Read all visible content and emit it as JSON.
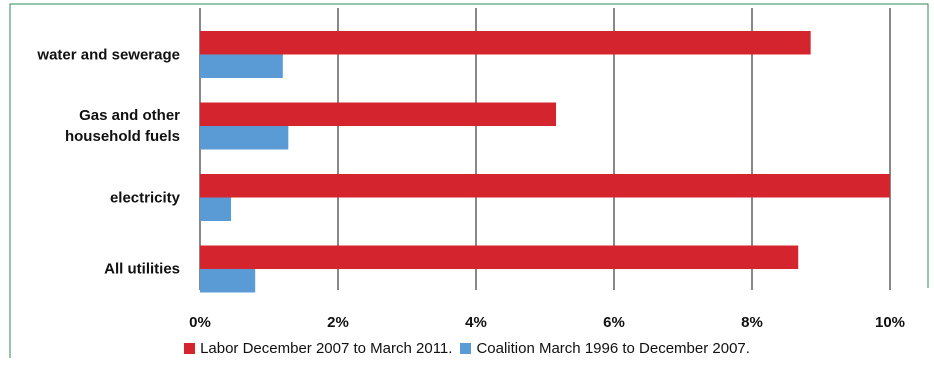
{
  "chart_data": {
    "type": "hbar",
    "categories": [
      "water and sewerage",
      "Gas and other household fuels",
      "electricity",
      "All utilities"
    ],
    "series": [
      {
        "name": "Labor December 2007 to March 2011.",
        "color": "#d4242e",
        "values": [
          8.85,
          5.16,
          10,
          8.67
        ]
      },
      {
        "name": "Coalition March 1996 to December 2007.",
        "color": "#5b9bd5",
        "values": [
          1.2,
          1.28,
          0.45,
          0.8
        ]
      }
    ],
    "xlim": [
      0,
      10
    ],
    "xticks": [
      {
        "value": 0,
        "label": "0%"
      },
      {
        "value": 2,
        "label": "2%"
      },
      {
        "value": 4,
        "label": "4%"
      },
      {
        "value": 6,
        "label": "6%"
      },
      {
        "value": 8,
        "label": "8%"
      },
      {
        "value": 10,
        "label": "10%"
      }
    ],
    "grid": true
  }
}
